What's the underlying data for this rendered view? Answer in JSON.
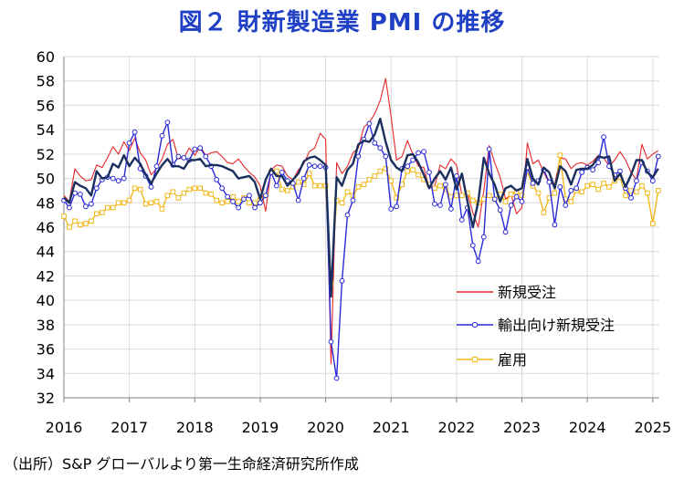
{
  "title": "図２ 財新製造業 PMI の推移",
  "source": "（出所）S&P グローバルより第一生命経済研究所作成",
  "colors": {
    "new_orders": "#e8262b",
    "export_orders": "#2a2ad8",
    "pmi": "#1a2f5e",
    "employment": "#f1b81c"
  },
  "chart_data": {
    "type": "line",
    "ylim": [
      32,
      60
    ],
    "ytick_step": 2,
    "xlim": [
      2016,
      2025.1
    ],
    "xticks": [
      "2016",
      "2017",
      "2018",
      "2019",
      "2020",
      "2021",
      "2022",
      "2023",
      "2024",
      "2025"
    ],
    "yticks": [
      "32",
      "34",
      "36",
      "38",
      "40",
      "42",
      "44",
      "46",
      "48",
      "50",
      "52",
      "54",
      "56",
      "58",
      "60"
    ],
    "grid": true,
    "legend_position": "right",
    "x": [
      2016.0,
      2016.083,
      2016.167,
      2016.25,
      2016.333,
      2016.417,
      2016.5,
      2016.583,
      2016.667,
      2016.75,
      2016.833,
      2016.917,
      2017.0,
      2017.083,
      2017.167,
      2017.25,
      2017.333,
      2017.417,
      2017.5,
      2017.583,
      2017.667,
      2017.75,
      2017.833,
      2017.917,
      2018.0,
      2018.083,
      2018.167,
      2018.25,
      2018.333,
      2018.417,
      2018.5,
      2018.583,
      2018.667,
      2018.75,
      2018.833,
      2018.917,
      2019.0,
      2019.083,
      2019.167,
      2019.25,
      2019.333,
      2019.417,
      2019.5,
      2019.583,
      2019.667,
      2019.75,
      2019.833,
      2019.917,
      2020.0,
      2020.083,
      2020.167,
      2020.25,
      2020.333,
      2020.417,
      2020.5,
      2020.583,
      2020.667,
      2020.75,
      2020.833,
      2020.917,
      2021.0,
      2021.083,
      2021.167,
      2021.25,
      2021.333,
      2021.417,
      2021.5,
      2021.583,
      2021.667,
      2021.75,
      2021.833,
      2021.917,
      2022.0,
      2022.083,
      2022.167,
      2022.25,
      2022.333,
      2022.417,
      2022.5,
      2022.583,
      2022.667,
      2022.75,
      2022.833,
      2022.917,
      2023.0,
      2023.083,
      2023.167,
      2023.25,
      2023.333,
      2023.417,
      2023.5,
      2023.583,
      2023.667,
      2023.75,
      2023.833,
      2023.917,
      2024.0,
      2024.083,
      2024.167,
      2024.25,
      2024.333,
      2024.417,
      2024.5,
      2024.583,
      2024.667,
      2024.75,
      2024.833,
      2024.917,
      2025.0,
      2025.083
    ],
    "series": [
      {
        "name": "新規受注",
        "key": "new_orders",
        "marker": "none",
        "values": [
          48.6,
          48.1,
          50.8,
          50.2,
          49.8,
          49.9,
          51.1,
          50.9,
          51.7,
          52.6,
          52.0,
          53.0,
          52.3,
          53.3,
          52.1,
          51.5,
          50.3,
          50.8,
          51.6,
          52.8,
          53.2,
          51.6,
          51.7,
          52.5,
          51.9,
          52.6,
          51.9,
          52.1,
          52.2,
          51.8,
          51.3,
          51.2,
          51.6,
          51.0,
          50.5,
          50.1,
          49.4,
          47.3,
          50.7,
          51.1,
          51.0,
          50.2,
          49.9,
          50.7,
          51.2,
          52.2,
          52.5,
          53.7,
          53.2,
          34.8,
          51.3,
          50.4,
          51.0,
          52.1,
          52.5,
          54.2,
          54.6,
          55.3,
          56.4,
          58.2,
          55.1,
          51.5,
          51.8,
          53.1,
          52.0,
          51.0,
          50.9,
          49.2,
          49.4,
          51.1,
          50.8,
          51.6,
          51.1,
          48.6,
          48.8,
          47.2,
          46.0,
          49.0,
          52.7,
          51.3,
          50.1,
          48.3,
          48.7,
          47.1,
          47.6,
          52.9,
          51.2,
          51.5,
          50.5,
          49.6,
          49.5,
          51.7,
          51.6,
          50.8,
          51.2,
          51.3,
          51.1,
          51.4,
          51.9,
          51.7,
          51.0,
          51.5,
          52.2,
          51.5,
          50.5,
          49.9,
          52.8,
          51.6,
          52.0,
          52.3
        ]
      },
      {
        "name": "輸出向け新規受注",
        "key": "export_orders",
        "marker": "circle",
        "values": [
          48.2,
          47.6,
          48.8,
          48.7,
          47.7,
          47.9,
          49.2,
          49.9,
          50.1,
          50.0,
          49.8,
          50.0,
          52.9,
          53.8,
          50.8,
          50.2,
          49.3,
          51.0,
          53.5,
          54.6,
          51.1,
          51.8,
          51.7,
          51.5,
          52.4,
          52.5,
          51.8,
          51.0,
          49.9,
          49.2,
          48.5,
          48.1,
          47.6,
          48.3,
          48.6,
          47.6,
          48.0,
          48.6,
          50.5,
          49.4,
          50.5,
          49.8,
          49.6,
          48.2,
          50.0,
          51.1,
          51.0,
          51.0,
          50.9,
          36.6,
          33.6,
          41.6,
          47.0,
          48.2,
          51.8,
          53.2,
          54.5,
          52.9,
          52.5,
          51.8,
          47.5,
          47.7,
          50.8,
          51.0,
          51.5,
          52.1,
          52.2,
          50.5,
          47.9,
          47.8,
          49.5,
          47.5,
          50.2,
          46.6,
          47.6,
          44.5,
          43.2,
          45.2,
          52.4,
          48.3,
          47.4,
          45.6,
          47.8,
          48.5,
          48.1,
          50.9,
          49.6,
          49.8,
          50.7,
          49.7,
          46.2,
          49.3,
          47.8,
          49.0,
          49.2,
          50.5,
          50.9,
          50.7,
          51.3,
          53.4,
          51.0,
          50.3,
          50.6,
          49.2,
          48.4,
          49.8,
          51.3,
          50.6,
          49.8,
          51.8
        ]
      },
      {
        "name": "財新製造業PMI",
        "key": "pmi",
        "marker": "none",
        "hide_legend": true,
        "values": [
          48.4,
          48.0,
          49.7,
          49.4,
          49.2,
          48.6,
          50.6,
          50.0,
          50.1,
          51.2,
          50.9,
          51.9,
          51.0,
          51.7,
          51.2,
          50.3,
          49.6,
          50.4,
          51.1,
          51.6,
          51.0,
          51.0,
          50.8,
          51.5,
          51.5,
          51.6,
          51.0,
          51.1,
          51.1,
          51.0,
          50.8,
          50.6,
          50.0,
          50.1,
          50.2,
          49.7,
          48.3,
          49.9,
          50.8,
          50.2,
          50.2,
          49.4,
          49.9,
          50.4,
          51.4,
          51.7,
          51.8,
          51.5,
          51.1,
          40.3,
          50.1,
          49.4,
          50.7,
          51.2,
          52.8,
          53.1,
          53.0,
          53.6,
          54.9,
          53.0,
          51.5,
          50.9,
          50.6,
          51.9,
          52.0,
          51.3,
          50.3,
          49.2,
          50.0,
          50.6,
          49.9,
          50.9,
          49.1,
          50.4,
          48.1,
          46.0,
          48.1,
          51.7,
          50.4,
          49.5,
          48.1,
          49.2,
          49.4,
          49.0,
          49.2,
          51.6,
          50.0,
          49.5,
          50.9,
          50.5,
          49.2,
          51.0,
          50.6,
          49.5,
          50.7,
          50.8,
          50.8,
          51.1,
          51.8,
          51.7,
          51.8,
          49.8,
          50.4,
          49.3,
          50.3,
          51.5,
          51.5,
          50.5,
          50.1,
          50.8
        ]
      },
      {
        "name": "雇用",
        "key": "employment",
        "marker": "square",
        "values": [
          46.9,
          46.0,
          46.5,
          46.2,
          46.3,
          46.5,
          47.1,
          47.2,
          47.6,
          47.6,
          48.0,
          48.0,
          48.2,
          49.2,
          49.1,
          47.9,
          48.0,
          48.1,
          47.5,
          48.6,
          48.9,
          48.4,
          48.8,
          49.1,
          49.2,
          49.2,
          48.8,
          48.7,
          48.2,
          48.0,
          48.1,
          48.5,
          48.1,
          48.4,
          48.0,
          48.0,
          48.2,
          48.6,
          50.5,
          50.6,
          49.1,
          49.0,
          49.3,
          49.7,
          49.5,
          50.4,
          49.4,
          49.4,
          49.4,
          41.4,
          48.2,
          48.0,
          48.9,
          48.6,
          49.3,
          49.5,
          49.9,
          50.2,
          50.6,
          50.8,
          49.8,
          48.4,
          49.5,
          50.6,
          50.7,
          50.3,
          49.9,
          49.5,
          49.2,
          49.4,
          49.1,
          48.5,
          48.6,
          48.6,
          48.8,
          48.2,
          48.0,
          48.3,
          48.6,
          48.3,
          48.7,
          48.1,
          48.7,
          48.9,
          48.6,
          50.6,
          49.4,
          48.8,
          47.2,
          48.4,
          48.8,
          51.9,
          48.3,
          48.1,
          49.0,
          48.9,
          49.4,
          49.5,
          49.1,
          49.6,
          49.3,
          49.8,
          50.1,
          48.6,
          49.0,
          48.9,
          49.4,
          48.8,
          46.3,
          49.0
        ]
      }
    ]
  }
}
